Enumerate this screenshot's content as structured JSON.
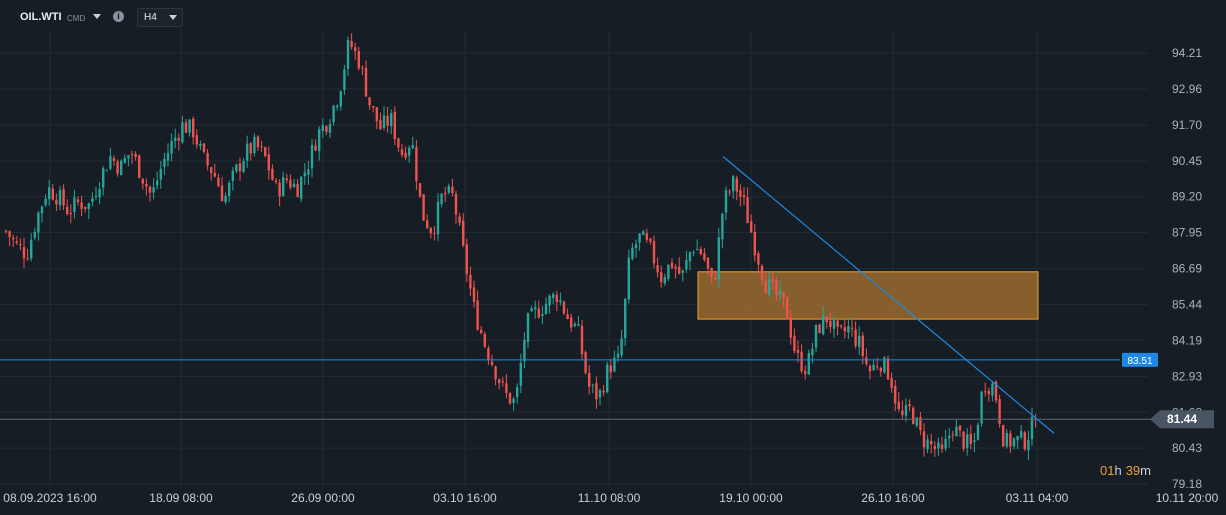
{
  "toolbar": {
    "symbol": "OIL.WTI",
    "symbol_type": "CMD",
    "info_glyph": "i",
    "timeframe": "H4"
  },
  "colors": {
    "background": "#161d24",
    "grid": "#212a33",
    "bull": "#26a69a",
    "bear": "#ef5350",
    "trendline": "#1e88e5",
    "zone_fill": "#a8722f",
    "zone_border": "#f0a030",
    "hline_price_tag": "#1e88e5",
    "current_price_tag": "#4a5563",
    "countdown": "#f0a030"
  },
  "chart_data": {
    "type": "candlestick",
    "y_ticks": [
      "94.21",
      "92.96",
      "91.70",
      "90.45",
      "89.20",
      "87.95",
      "86.69",
      "85.44",
      "84.19",
      "82.93",
      "81.68",
      "80.43",
      "79.18"
    ],
    "ylim": [
      78.8,
      95.6
    ],
    "x_ticks": [
      "08.09.2023  16:00",
      "18.09  08:00",
      "26.09  00:00",
      "03.10  16:00",
      "11.10  08:00",
      "19.10  00:00",
      "26.10  16:00",
      "03.11  04:00",
      "10.11  20:00"
    ],
    "horizontal_line": {
      "price": 83.51,
      "label": "83.51"
    },
    "current_price": {
      "price": 81.44,
      "label": "81.44"
    },
    "countdown": {
      "hours": "01",
      "h_unit": "h",
      "minutes": "39",
      "m_unit": "m"
    },
    "supply_zone": {
      "price_top": 86.58,
      "price_bottom": 84.93
    },
    "trendline": {
      "start_price": 90.6,
      "end_price": 80.95
    },
    "close_path": [
      88.0,
      87.5,
      87.2,
      88.5,
      89.5,
      89.2,
      88.7,
      89.0,
      88.9,
      89.8,
      90.6,
      90.2,
      90.8,
      90.0,
      89.2,
      90.3,
      91.1,
      91.7,
      91.5,
      90.5,
      90.0,
      89.1,
      90.0,
      90.7,
      91.0,
      90.5,
      89.4,
      89.8,
      89.5,
      90.3,
      91.4,
      91.9,
      92.8,
      94.6,
      93.9,
      92.4,
      91.6,
      91.9,
      90.7,
      91.2,
      88.6,
      88.0,
      89.3,
      89.2,
      87.2,
      85.3,
      84.1,
      83.2,
      82.3,
      82.0,
      84.7,
      85.2,
      85.5,
      85.8,
      85.0,
      84.5,
      82.6,
      82.2,
      83.3,
      83.5,
      87.2,
      87.8,
      87.3,
      86.4,
      86.9,
      86.4,
      87.5,
      87.2,
      86.0,
      89.0,
      89.7,
      88.9,
      87.5,
      86.2,
      85.8,
      85.3,
      83.6,
      83.2,
      84.6,
      85.0,
      84.3,
      84.6,
      84.1,
      83.1,
      83.5,
      83.0,
      81.4,
      81.8,
      80.8,
      80.5,
      80.2,
      81.2,
      80.7,
      80.4,
      82.7,
      82.6,
      80.6,
      80.7,
      80.7,
      81.44
    ]
  }
}
